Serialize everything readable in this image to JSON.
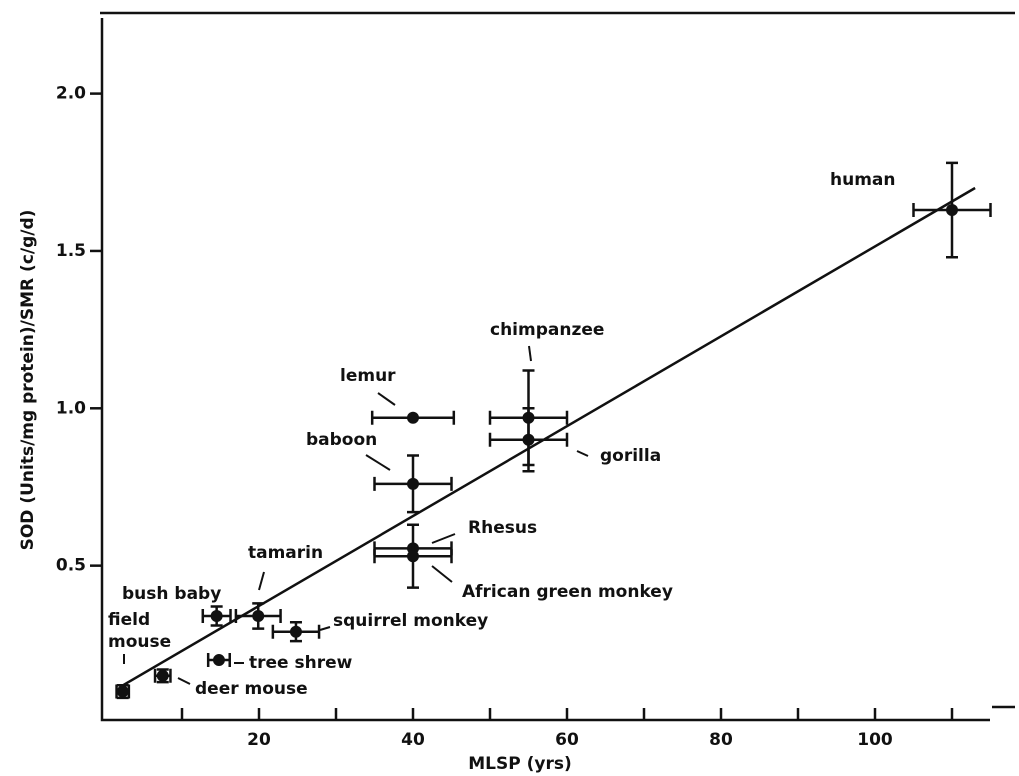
{
  "chart_data": {
    "type": "scatter",
    "x_label": "MLSP (yrs)",
    "y_label": "SOD (Units/mg protein)/SMR (c/g/d)",
    "xlim": [
      0,
      115
    ],
    "ylim": [
      0,
      2.25
    ],
    "xticks": [
      20,
      40,
      60,
      80,
      100
    ],
    "xminor_ticks": [
      10,
      30,
      50,
      70,
      90,
      110
    ],
    "yticks": [
      0.5,
      {
        "value": 1,
        "label": "1.0"
      },
      1.5,
      {
        "value": 2,
        "label": "2.0"
      }
    ],
    "color": "#111111",
    "points": [
      {
        "label": "field mouse",
        "x": 2.3,
        "y": 0.1,
        "xerr": 0.8,
        "yerr": 0.02
      },
      {
        "label": "deer mouse",
        "x": 7.5,
        "y": 0.15,
        "xerr": 1,
        "yerr": 0.02
      },
      {
        "label": "tree shrew",
        "x": 14.8,
        "y": 0.2,
        "xerr": 1.4
      },
      {
        "label": "bush baby",
        "x": 14.5,
        "y": 0.34,
        "xerr": 1.8,
        "yerr": 0.03
      },
      {
        "label": "tamarin",
        "x": 19.9,
        "y": 0.34,
        "xerr": 2.9,
        "yerr": 0.04
      },
      {
        "label": "squirrel monkey",
        "x": 24.8,
        "y": 0.29,
        "xerr": 3,
        "yerr": 0.03
      },
      {
        "label": "lemur",
        "x": 40,
        "y": 0.97,
        "xerr": 5.3
      },
      {
        "label": "baboon",
        "x": 40,
        "y": 0.76,
        "xerr": 5,
        "yerr": 0.09
      },
      {
        "label": "Rhesus",
        "x": 40,
        "y": 0.555,
        "xerr": 5
      },
      {
        "label": "African green monkey",
        "x": 40,
        "y": 0.53,
        "xerr": 5,
        "yerr": 0.1
      },
      {
        "label": "chimpanzee",
        "x": 55,
        "y": 0.97,
        "xerr": 5,
        "yerr": 0.15
      },
      {
        "label": "gorilla",
        "x": 55,
        "y": 0.9,
        "xerr": 5,
        "yerr": 0.1
      },
      {
        "label": "human",
        "x": 110,
        "y": 1.63,
        "xerr": 5,
        "yerr": 0.15
      }
    ],
    "fit_line": {
      "x": [
        2,
        113
      ],
      "y": [
        0.115,
        1.7
      ]
    }
  }
}
